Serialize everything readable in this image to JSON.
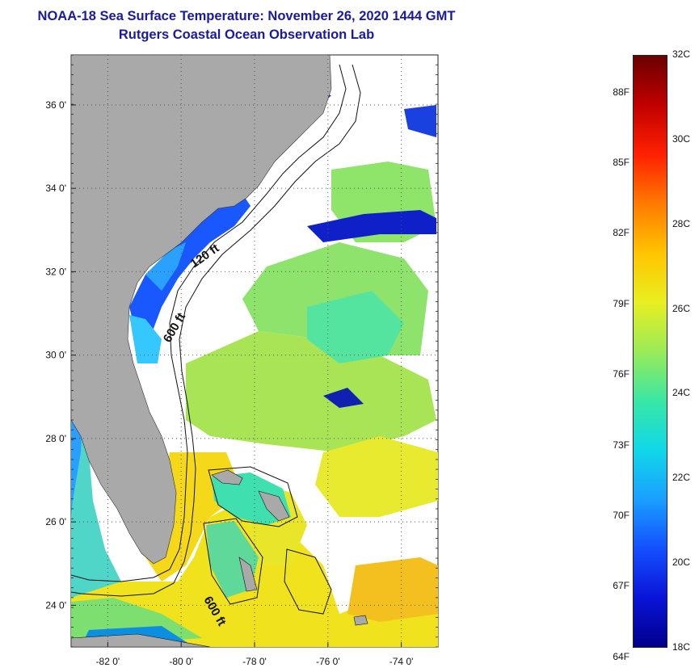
{
  "title": {
    "line1": "NOAA-18 Sea Surface Temperature:  November 26, 2020 1444 GMT",
    "line2": "Rutgers Coastal Ocean Observation Lab"
  },
  "map": {
    "lon_range": [
      -83,
      -73
    ],
    "lat_range": [
      23,
      37.2
    ],
    "lat_ticks": [
      {
        "lat": 24,
        "label": "24 0'"
      },
      {
        "lat": 26,
        "label": "26 0'"
      },
      {
        "lat": 28,
        "label": "28 0'"
      },
      {
        "lat": 30,
        "label": "30 0'"
      },
      {
        "lat": 32,
        "label": "32 0'"
      },
      {
        "lat": 34,
        "label": "34 0'"
      },
      {
        "lat": 36,
        "label": "36 0'"
      }
    ],
    "lon_ticks": [
      {
        "lon": -82,
        "label": "-82 0'"
      },
      {
        "lon": -80,
        "label": "-80 0'"
      },
      {
        "lon": -78,
        "label": "-78 0'"
      },
      {
        "lon": -76,
        "label": "-76 0'"
      },
      {
        "lon": -74,
        "label": "-74 0'"
      }
    ],
    "contour_labels": {
      "c120": "120 ft",
      "c600a": "600 ft",
      "c600b": "600 ft"
    },
    "colors": {
      "land": "#a9a9a9",
      "cloud": "#ffffff",
      "contour": "#111111"
    }
  },
  "colorbar": {
    "min_c": 18,
    "max_c": 32,
    "celsius_labels": [
      "32C",
      "30C",
      "28C",
      "26C",
      "24C",
      "22C",
      "20C",
      "18C"
    ],
    "fahrenheit_labels": [
      "88F",
      "85F",
      "82F",
      "79F",
      "76F",
      "73F",
      "70F",
      "67F",
      "64F"
    ],
    "gradient_stops": [
      "#6b0000",
      "#c00000",
      "#ff2000",
      "#ff7a00",
      "#ffc400",
      "#e8ef20",
      "#9aeb57",
      "#39e7a3",
      "#10d8e8",
      "#1a9fff",
      "#1450ff",
      "#0a14d8",
      "#00008a"
    ]
  }
}
